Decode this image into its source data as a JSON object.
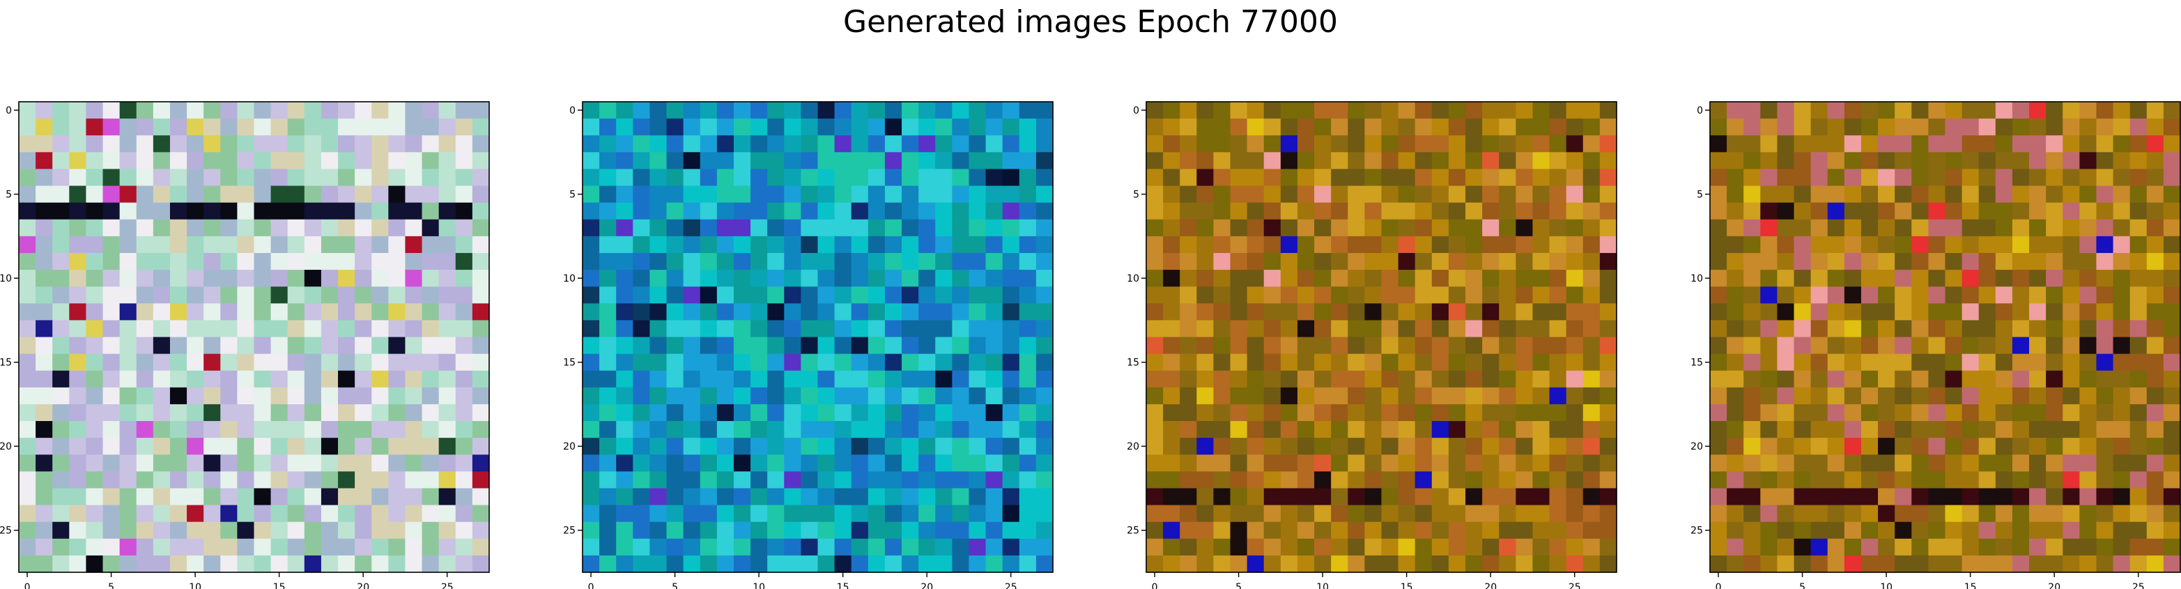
{
  "figure": {
    "title": "Generated images Epoch 77000"
  },
  "chart_data": [
    {
      "type": "heatmap",
      "palette": "light-pastel-noise",
      "palette_colors": [
        "#e6f2ec",
        "#bde3d3",
        "#9fd9c4",
        "#c9c2e2",
        "#b7b0da",
        "#d9d2b0",
        "#8fc79c",
        "#f0eef2",
        "#a3b8cf"
      ],
      "accent_colors": [
        "#0a0a14",
        "#111133",
        "#1d4f2e",
        "#b0122a",
        "#e0d050",
        "#d050d8",
        "#1a1a8a"
      ],
      "grid_size": [
        28,
        28
      ],
      "x_ticks": [
        "0",
        "5",
        "10",
        "15",
        "20",
        "25"
      ],
      "y_ticks": [
        "0",
        "5",
        "10",
        "15",
        "20",
        "25"
      ],
      "dark_rows": [
        6
      ],
      "grid": false
    },
    {
      "type": "heatmap",
      "palette": "cyan-blue-noise",
      "palette_colors": [
        "#0aa5b4",
        "#07c3c8",
        "#1aa0d8",
        "#0f86c0",
        "#1ec7a8",
        "#0d6aa0",
        "#2fd0d8",
        "#0b9d9a",
        "#1a72c8"
      ],
      "accent_colors": [
        "#0a1840",
        "#061030",
        "#5a32c8",
        "#0a3a60",
        "#0e2a70"
      ],
      "grid_size": [
        28,
        28
      ],
      "x_ticks": [
        "0",
        "5",
        "10",
        "15",
        "20",
        "25"
      ],
      "y_ticks": [
        "0",
        "5",
        "10",
        "15",
        "20",
        "25"
      ],
      "dark_rows": [],
      "grid": false
    },
    {
      "type": "heatmap",
      "palette": "olive-ochre-noise",
      "palette_colors": [
        "#8a6a10",
        "#a0760c",
        "#b8860b",
        "#6f5a14",
        "#c88a2a",
        "#9a5a18",
        "#7a6a08",
        "#b46a20",
        "#d0a020"
      ],
      "accent_colors": [
        "#1a0d0d",
        "#3a0a10",
        "#1510c0",
        "#e0c010",
        "#e05a30",
        "#f0a0a0"
      ],
      "grid_size": [
        28,
        28
      ],
      "x_ticks": [
        "0",
        "5",
        "10",
        "15",
        "20",
        "25"
      ],
      "y_ticks": [
        "0",
        "5",
        "10",
        "15",
        "20",
        "25"
      ],
      "dark_rows": [
        23
      ],
      "grid": false
    },
    {
      "type": "heatmap",
      "palette": "olive-ochre-rose-noise",
      "palette_colors": [
        "#8a6a10",
        "#a0760c",
        "#b8860b",
        "#6f5a14",
        "#c88a2a",
        "#9a5a18",
        "#7a6a08",
        "#c06a70",
        "#d0a020"
      ],
      "accent_colors": [
        "#1a0d0d",
        "#3a0a10",
        "#1510c0",
        "#e0c010",
        "#e83030",
        "#f0a0a0"
      ],
      "grid_size": [
        28,
        28
      ],
      "x_ticks": [
        "0",
        "5",
        "10",
        "15",
        "20",
        "25"
      ],
      "y_ticks": [
        "0",
        "5",
        "10",
        "15",
        "20",
        "25"
      ],
      "dark_rows": [
        23
      ],
      "grid": false
    }
  ]
}
